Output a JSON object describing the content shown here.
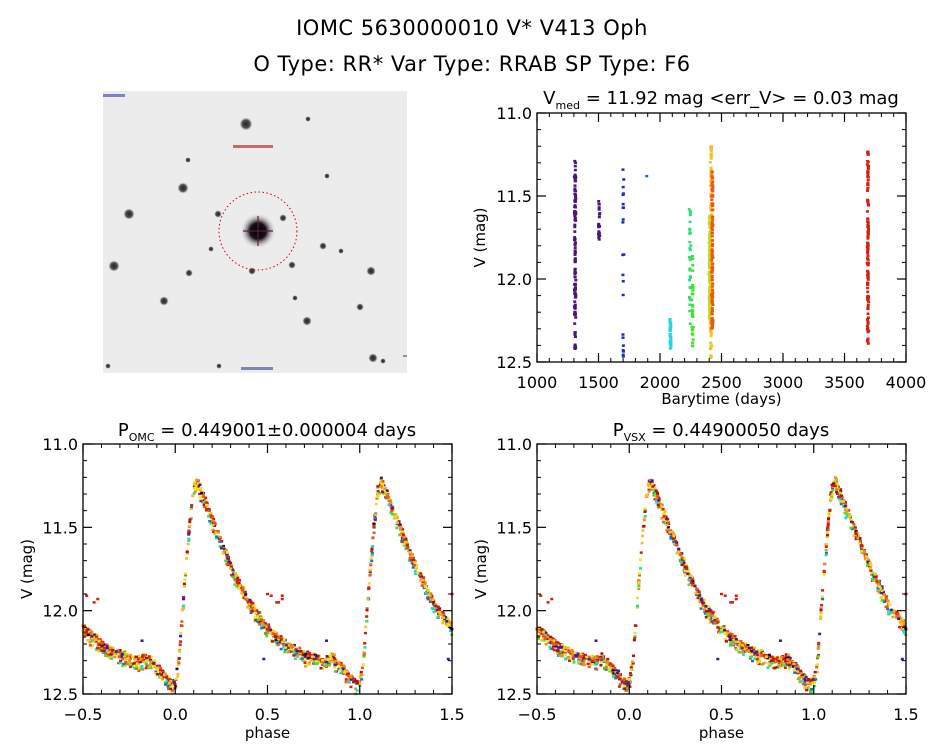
{
  "header": {
    "title": "IOMC 5630000010    V* V413 Oph",
    "subtitle": "O Type: RR*  Var Type: RRAB  SP Type: F6"
  },
  "thumbnail": {
    "description": "OMC finding chart image, grayscale star field with dashed red circle around target",
    "circle_color": "#cc0000"
  },
  "colors": {
    "palette": [
      "#2a0a3a",
      "#4b1678",
      "#3a1aa0",
      "#1c2cc0",
      "#1a70d0",
      "#22d8d8",
      "#2ae07a",
      "#44e030",
      "#b8e020",
      "#f0e020",
      "#f8c020",
      "#f09020",
      "#e85a10",
      "#d42010",
      "#b41010"
    ]
  },
  "chart_data": [
    {
      "id": "lightcurve",
      "type": "scatter",
      "title": "V_med = 11.92 mag <err_V> = 0.03 mag",
      "title_main": "V",
      "title_sub": "med",
      "title_rest": " = 11.92 mag <err_V> = 0.03 mag",
      "xlabel": "Barytime (days)",
      "ylabel": "V (mag)",
      "xlim": [
        1000,
        4000
      ],
      "ylim": [
        12.5,
        11.0
      ],
      "y_inverted": true,
      "xticks": [
        1000,
        1500,
        2000,
        2500,
        3000,
        3500,
        4000
      ],
      "xtick_labels": [
        "1000",
        "1500",
        "2000",
        "2500",
        "3000",
        "3500",
        "4000"
      ],
      "yticks": [
        11.0,
        11.5,
        12.0,
        12.5
      ],
      "ytick_labels": [
        "11.0",
        "11.5",
        "12.0",
        "12.5"
      ],
      "groups": [
        {
          "x": 1310,
          "vmin": 11.27,
          "vmax": 12.44,
          "color_index": 1,
          "density": "dense"
        },
        {
          "x": 1505,
          "vmin": 11.53,
          "vmax": 11.79,
          "color_index": 1,
          "density": "sparse"
        },
        {
          "x": 1700,
          "vmin": 11.23,
          "vmax": 12.48,
          "color_index": 3,
          "density": "sparse"
        },
        {
          "x": 1890,
          "vmin": 11.38,
          "vmax": 11.39,
          "color_index": 4,
          "density": "single"
        },
        {
          "x": 2085,
          "vmin": 12.24,
          "vmax": 12.43,
          "color_index": 5,
          "density": "medium"
        },
        {
          "x": 2245,
          "vmin": 11.58,
          "vmax": 12.3,
          "color_index": 6,
          "density": "medium"
        },
        {
          "x": 2265,
          "vmin": 11.83,
          "vmax": 12.42,
          "color_index": 7,
          "density": "medium"
        },
        {
          "x": 2405,
          "vmin": 11.62,
          "vmax": 12.27,
          "color_index": 8,
          "density": "dense"
        },
        {
          "x": 2415,
          "vmin": 11.2,
          "vmax": 12.48,
          "color_index": 10,
          "density": "dense"
        },
        {
          "x": 2425,
          "vmin": 11.35,
          "vmax": 12.3,
          "color_index": 12,
          "density": "dense"
        },
        {
          "x": 3690,
          "vmin": 11.23,
          "vmax": 12.4,
          "color_index": 13,
          "density": "dense"
        }
      ]
    },
    {
      "id": "phase-omc",
      "type": "scatter",
      "title": "P_OMC = 0.449001±0.000004 days",
      "title_main": "P",
      "title_sub": "OMC",
      "title_rest": " = 0.449001±0.000004 days",
      "xlabel": "phase",
      "ylabel": "V (mag)",
      "xlim": [
        -0.5,
        1.5
      ],
      "ylim": [
        12.5,
        11.0
      ],
      "y_inverted": true,
      "xticks": [
        -0.5,
        0.0,
        0.5,
        1.0,
        1.5
      ],
      "xtick_labels": [
        "−0.5",
        "0.0",
        "0.5",
        "1.0",
        "1.5"
      ],
      "yticks": [
        11.0,
        11.5,
        12.0,
        12.5
      ],
      "ytick_labels": [
        "11.0",
        "11.5",
        "12.0",
        "12.5"
      ],
      "period_days": 0.449001,
      "template": {
        "phase": [
          0.0,
          0.02,
          0.05,
          0.08,
          0.1,
          0.12,
          0.2,
          0.3,
          0.4,
          0.5,
          0.6,
          0.7,
          0.8,
          0.85,
          0.9,
          0.95,
          0.98,
          1.0
        ],
        "v": [
          12.42,
          12.3,
          11.85,
          11.45,
          11.25,
          11.22,
          11.45,
          11.72,
          11.95,
          12.1,
          12.2,
          12.26,
          12.3,
          12.28,
          12.33,
          12.4,
          12.44,
          12.42
        ]
      },
      "outliers": [
        {
          "phase": -0.48,
          "v": 11.91
        },
        {
          "phase": -0.44,
          "v": 11.95
        },
        {
          "phase": -0.42,
          "v": 11.93
        },
        {
          "phase": 0.5,
          "v": 11.9
        },
        {
          "phase": 0.55,
          "v": 11.95
        },
        {
          "phase": 0.58,
          "v": 11.91
        },
        {
          "phase": -0.18,
          "v": 12.18
        },
        {
          "phase": 0.48,
          "v": 12.29
        }
      ]
    },
    {
      "id": "phase-vsx",
      "type": "scatter",
      "title": "P_VSX = 0.44900050 days",
      "title_main": "P",
      "title_sub": "VSX",
      "title_rest": " = 0.44900050 days",
      "xlabel": "phase",
      "ylabel": "V (mag)",
      "xlim": [
        -0.5,
        1.5
      ],
      "ylim": [
        12.5,
        11.0
      ],
      "y_inverted": true,
      "xticks": [
        -0.5,
        0.0,
        0.5,
        1.0,
        1.5
      ],
      "xtick_labels": [
        "−0.5",
        "0.0",
        "0.5",
        "1.0",
        "1.5"
      ],
      "yticks": [
        11.0,
        11.5,
        12.0,
        12.5
      ],
      "ytick_labels": [
        "11.0",
        "11.5",
        "12.0",
        "12.5"
      ],
      "period_days": 0.4490005,
      "template": {
        "phase": [
          0.0,
          0.02,
          0.05,
          0.08,
          0.1,
          0.12,
          0.2,
          0.3,
          0.4,
          0.5,
          0.6,
          0.7,
          0.8,
          0.85,
          0.9,
          0.95,
          0.98,
          1.0
        ],
        "v": [
          12.42,
          12.3,
          11.85,
          11.45,
          11.25,
          11.22,
          11.45,
          11.72,
          11.95,
          12.1,
          12.2,
          12.26,
          12.3,
          12.28,
          12.33,
          12.4,
          12.44,
          12.42
        ]
      },
      "outliers": [
        {
          "phase": -0.48,
          "v": 11.91
        },
        {
          "phase": -0.44,
          "v": 11.95
        },
        {
          "phase": -0.42,
          "v": 11.93
        },
        {
          "phase": 0.5,
          "v": 11.9
        },
        {
          "phase": 0.55,
          "v": 11.95
        },
        {
          "phase": 0.58,
          "v": 11.91
        },
        {
          "phase": -0.18,
          "v": 12.18
        },
        {
          "phase": 0.48,
          "v": 12.29
        }
      ]
    }
  ]
}
